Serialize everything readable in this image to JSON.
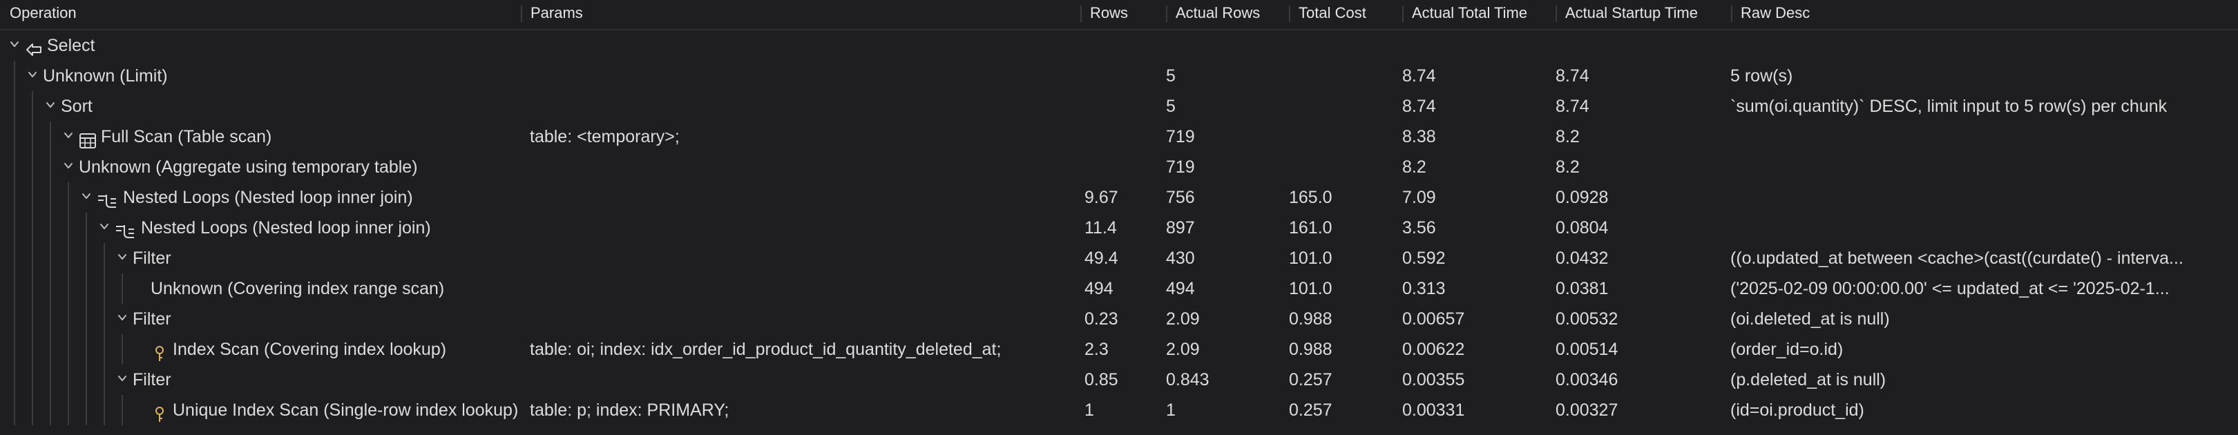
{
  "columns": {
    "operation": "Operation",
    "params": "Params",
    "rows": "Rows",
    "actual_rows": "Actual Rows",
    "total_cost": "Total Cost",
    "actual_total_time": "Actual Total Time",
    "actual_startup_time": "Actual Startup Time",
    "raw_desc": "Raw Desc"
  },
  "rows": [
    {
      "operation": "Select",
      "params": "",
      "rows": "",
      "actual_rows": "",
      "total_cost": "",
      "actual_total_time": "",
      "actual_startup_time": "",
      "raw_desc": "",
      "icon": "select-arrow-icon"
    },
    {
      "operation": "Unknown (Limit)",
      "params": "",
      "rows": "",
      "actual_rows": "5",
      "total_cost": "",
      "actual_total_time": "8.74",
      "actual_startup_time": "8.74",
      "raw_desc": "5 row(s)",
      "icon": ""
    },
    {
      "operation": "Sort",
      "params": "",
      "rows": "",
      "actual_rows": "5",
      "total_cost": "",
      "actual_total_time": "8.74",
      "actual_startup_time": "8.74",
      "raw_desc": "`sum(oi.quantity)` DESC, limit input to 5 row(s) per chunk",
      "icon": ""
    },
    {
      "operation": "Full Scan (Table scan)",
      "params": "table: <temporary>;",
      "rows": "",
      "actual_rows": "719",
      "total_cost": "",
      "actual_total_time": "8.38",
      "actual_startup_time": "8.2",
      "raw_desc": "",
      "icon": "table-grid-icon"
    },
    {
      "operation": "Unknown (Aggregate using temporary table)",
      "params": "",
      "rows": "",
      "actual_rows": "719",
      "total_cost": "",
      "actual_total_time": "8.2",
      "actual_startup_time": "8.2",
      "raw_desc": "",
      "icon": ""
    },
    {
      "operation": "Nested Loops (Nested loop inner join)",
      "params": "",
      "rows": "9.67",
      "actual_rows": "756",
      "total_cost": "165.0",
      "actual_total_time": "7.09",
      "actual_startup_time": "0.0928",
      "raw_desc": "",
      "icon": "nested-loop-icon"
    },
    {
      "operation": "Nested Loops (Nested loop inner join)",
      "params": "",
      "rows": "11.4",
      "actual_rows": "897",
      "total_cost": "161.0",
      "actual_total_time": "3.56",
      "actual_startup_time": "0.0804",
      "raw_desc": "",
      "icon": "nested-loop-icon"
    },
    {
      "operation": "Filter",
      "params": "",
      "rows": "49.4",
      "actual_rows": "430",
      "total_cost": "101.0",
      "actual_total_time": "0.592",
      "actual_startup_time": "0.0432",
      "raw_desc": "((o.updated_at between <cache>(cast((curdate() - interva...",
      "icon": ""
    },
    {
      "operation": "Unknown (Covering index range scan)",
      "params": "",
      "rows": "494",
      "actual_rows": "494",
      "total_cost": "101.0",
      "actual_total_time": "0.313",
      "actual_startup_time": "0.0381",
      "raw_desc": "('2025-02-09 00:00:00.00' <= updated_at <= '2025-02-1...",
      "icon": ""
    },
    {
      "operation": "Filter",
      "params": "",
      "rows": "0.23",
      "actual_rows": "2.09",
      "total_cost": "0.988",
      "actual_total_time": "0.00657",
      "actual_startup_time": "0.00532",
      "raw_desc": "(oi.deleted_at is null)",
      "icon": ""
    },
    {
      "operation": "Index Scan (Covering index lookup)",
      "params": "table: oi; index: idx_order_id_product_id_quantity_deleted_at;",
      "rows": "2.3",
      "actual_rows": "2.09",
      "total_cost": "0.988",
      "actual_total_time": "0.00622",
      "actual_startup_time": "0.00514",
      "raw_desc": "(order_id=o.id)",
      "icon": "key-icon"
    },
    {
      "operation": "Filter",
      "params": "",
      "rows": "0.85",
      "actual_rows": "0.843",
      "total_cost": "0.257",
      "actual_total_time": "0.00355",
      "actual_startup_time": "0.00346",
      "raw_desc": "(p.deleted_at is null)",
      "icon": ""
    },
    {
      "operation": "Unique Index Scan (Single-row index lookup)",
      "params": "table: p; index: PRIMARY;",
      "rows": "1",
      "actual_rows": "1",
      "total_cost": "0.257",
      "actual_total_time": "0.00331",
      "actual_startup_time": "0.00327",
      "raw_desc": "(id=oi.product_id)",
      "icon": "key-icon"
    }
  ]
}
